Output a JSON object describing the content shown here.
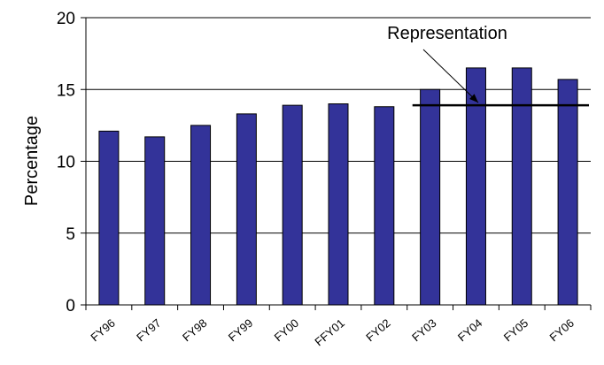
{
  "chart_data": {
    "type": "bar",
    "categories": [
      "FY96",
      "FY97",
      "FY98",
      "FY99",
      "FY00",
      "FFY01",
      "FY02",
      "FY03",
      "FY04",
      "FY05",
      "FY06"
    ],
    "series": [
      {
        "values": [
          12.1,
          11.7,
          12.5,
          13.3,
          13.9,
          14.0,
          13.8,
          15.0,
          16.5,
          16.5,
          15.7
        ],
        "color": "#333399"
      }
    ],
    "ylabel": "Percentage",
    "xlabel": "",
    "ylim": [
      0,
      20
    ],
    "yticks": [
      0,
      5,
      10,
      15,
      20
    ],
    "grid": true,
    "reference_line": {
      "label": "Representation",
      "value": 13.9,
      "from_category": "FY03",
      "to_category": "FY06"
    }
  }
}
